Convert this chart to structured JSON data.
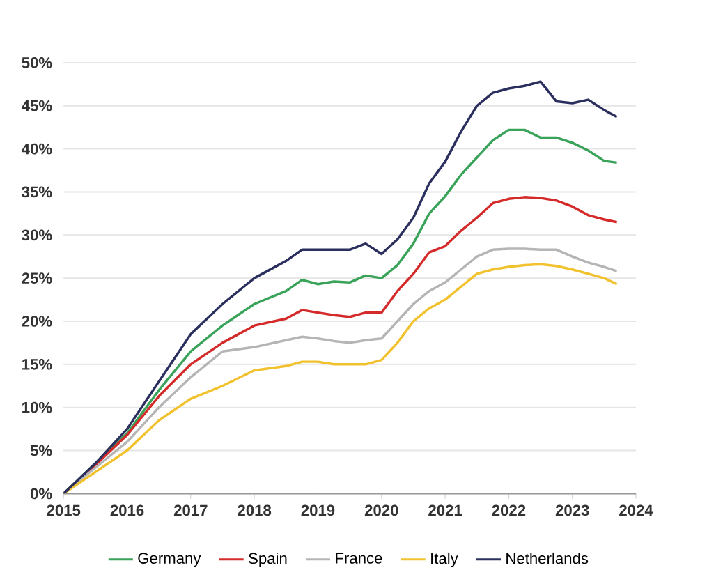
{
  "chart_data": {
    "type": "line",
    "x": [
      2015,
      2015.5,
      2016,
      2016.5,
      2017,
      2017.5,
      2018,
      2018.5,
      2018.75,
      2019,
      2019.25,
      2019.5,
      2019.75,
      2020,
      2020.25,
      2020.5,
      2020.75,
      2021,
      2021.25,
      2021.5,
      2021.75,
      2022,
      2022.25,
      2022.5,
      2022.75,
      2023,
      2023.25,
      2023.5,
      2023.7
    ],
    "series": [
      {
        "name": "Germany",
        "color": "#3aa35a",
        "values": [
          0,
          3.5,
          7,
          12,
          16.5,
          19.5,
          22,
          23.5,
          24.8,
          24.3,
          24.6,
          24.5,
          25.3,
          25,
          26.5,
          29,
          32.5,
          34.5,
          37,
          39,
          41,
          42.2,
          42.2,
          41.3,
          41.3,
          40.7,
          39.8,
          38.6,
          38.4
        ]
      },
      {
        "name": "Spain",
        "color": "#d42a2a",
        "values": [
          0,
          3.3,
          6.8,
          11.3,
          15,
          17.5,
          19.5,
          20.3,
          21.3,
          21,
          20.7,
          20.5,
          21,
          21,
          23.5,
          25.5,
          28,
          28.7,
          30.5,
          32,
          33.7,
          34.2,
          34.4,
          34.3,
          34,
          33.3,
          32.3,
          31.8,
          31.5
        ]
      },
      {
        "name": "France",
        "color": "#b5b5b5",
        "values": [
          0,
          3,
          6,
          10,
          13.5,
          16.5,
          17,
          17.8,
          18.2,
          18,
          17.7,
          17.5,
          17.8,
          18,
          20,
          22,
          23.5,
          24.5,
          26,
          27.5,
          28.3,
          28.4,
          28.4,
          28.3,
          28.3,
          27.5,
          26.8,
          26.3,
          25.8
        ]
      },
      {
        "name": "Italy",
        "color": "#f2c12e",
        "values": [
          0,
          2.5,
          5,
          8.5,
          11,
          12.5,
          14.3,
          14.8,
          15.3,
          15.3,
          15,
          15,
          15,
          15.5,
          17.5,
          20,
          21.5,
          22.5,
          24,
          25.5,
          26,
          26.3,
          26.5,
          26.6,
          26.4,
          26,
          25.5,
          25,
          24.3
        ]
      },
      {
        "name": "Netherlands",
        "color": "#2b2f5e",
        "values": [
          0,
          3.5,
          7.5,
          13,
          18.5,
          22,
          25,
          27,
          28.3,
          28.3,
          28.3,
          28.3,
          29,
          27.8,
          29.5,
          32,
          36,
          38.5,
          42,
          45,
          46.5,
          47,
          47.3,
          47.8,
          45.5,
          45.3,
          45.7,
          44.5,
          43.7
        ]
      }
    ],
    "xlim": [
      2015,
      2024
    ],
    "xticks": [
      2015,
      2016,
      2017,
      2018,
      2019,
      2020,
      2021,
      2022,
      2023,
      2024
    ],
    "ylim": [
      0,
      50
    ],
    "yticks": [
      {
        "value": 0,
        "label": "0%"
      },
      {
        "value": 5,
        "label": "5%"
      },
      {
        "value": 10,
        "label": "10%"
      },
      {
        "value": 15,
        "label": "15%"
      },
      {
        "value": 20,
        "label": "20%"
      },
      {
        "value": 25,
        "label": "25%"
      },
      {
        "value": 30,
        "label": "30%"
      },
      {
        "value": 35,
        "label": "35%"
      },
      {
        "value": 40,
        "label": "40%"
      },
      {
        "value": 45,
        "label": "45%"
      },
      {
        "value": 50,
        "label": "50%"
      }
    ],
    "grid": "y",
    "legend": "bottom",
    "marker": "none",
    "line_style": "solid"
  }
}
